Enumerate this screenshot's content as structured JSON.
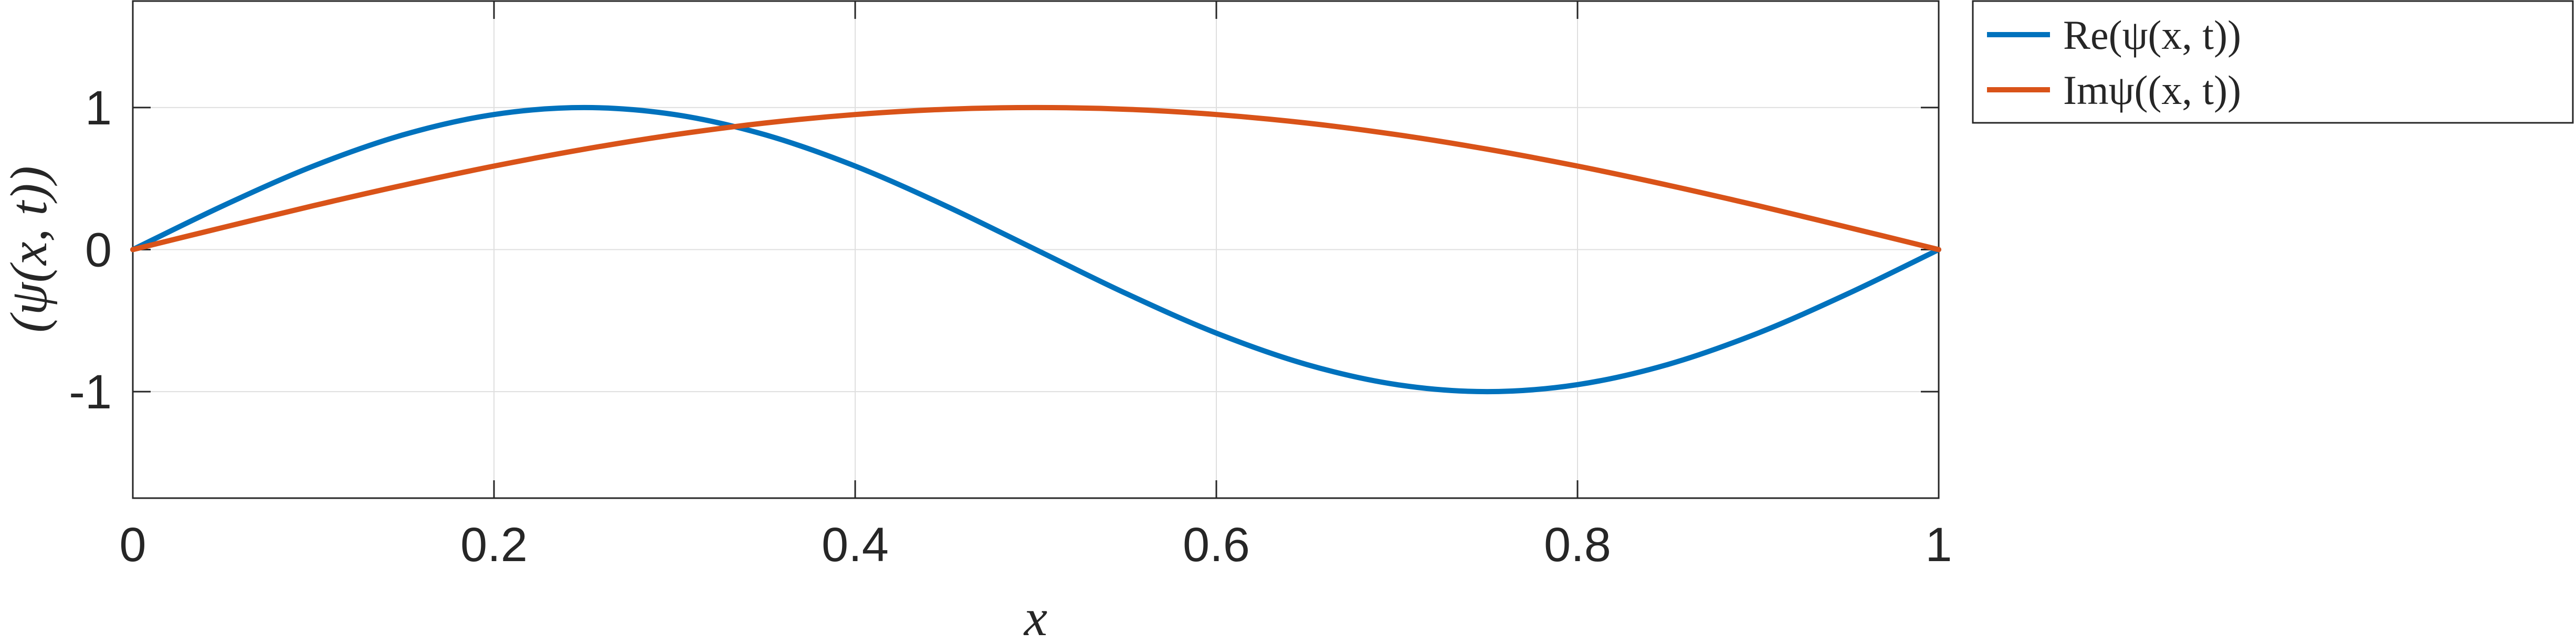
{
  "chart_data": {
    "type": "line",
    "title": "",
    "xlabel": "x",
    "ylabel": "(ψ(x, t))",
    "xlim": [
      0,
      1
    ],
    "ylim": [
      -1.75,
      1.75
    ],
    "xticks": [
      0,
      0.2,
      0.4,
      0.6,
      0.8,
      1
    ],
    "xtick_labels": [
      "0",
      "0.2",
      "0.4",
      "0.6",
      "0.8",
      "1"
    ],
    "yticks": [
      -1,
      0,
      1
    ],
    "ytick_labels": [
      "-1",
      "0",
      "1"
    ],
    "grid": true,
    "legend_position": "outside-top-right",
    "x": [
      0,
      0.05,
      0.1,
      0.15,
      0.2,
      0.25,
      0.3,
      0.35,
      0.4,
      0.45,
      0.5,
      0.55,
      0.6,
      0.65,
      0.7,
      0.75,
      0.8,
      0.85,
      0.9,
      0.95,
      1
    ],
    "series": [
      {
        "name": "Re(ψ(x, t))",
        "color": "#0072BD",
        "values": [
          0,
          0.309,
          0.588,
          0.809,
          0.951,
          1,
          0.951,
          0.809,
          0.588,
          0.309,
          0,
          -0.309,
          -0.588,
          -0.809,
          -0.951,
          -1,
          -0.951,
          -0.809,
          -0.588,
          -0.309,
          0
        ]
      },
      {
        "name": "Imψ((x, t))",
        "color": "#D95319",
        "values": [
          0,
          0.156,
          0.309,
          0.454,
          0.588,
          0.707,
          0.809,
          0.891,
          0.951,
          0.988,
          1,
          0.988,
          0.951,
          0.891,
          0.809,
          0.707,
          0.588,
          0.454,
          0.309,
          0.156,
          0
        ]
      }
    ]
  }
}
